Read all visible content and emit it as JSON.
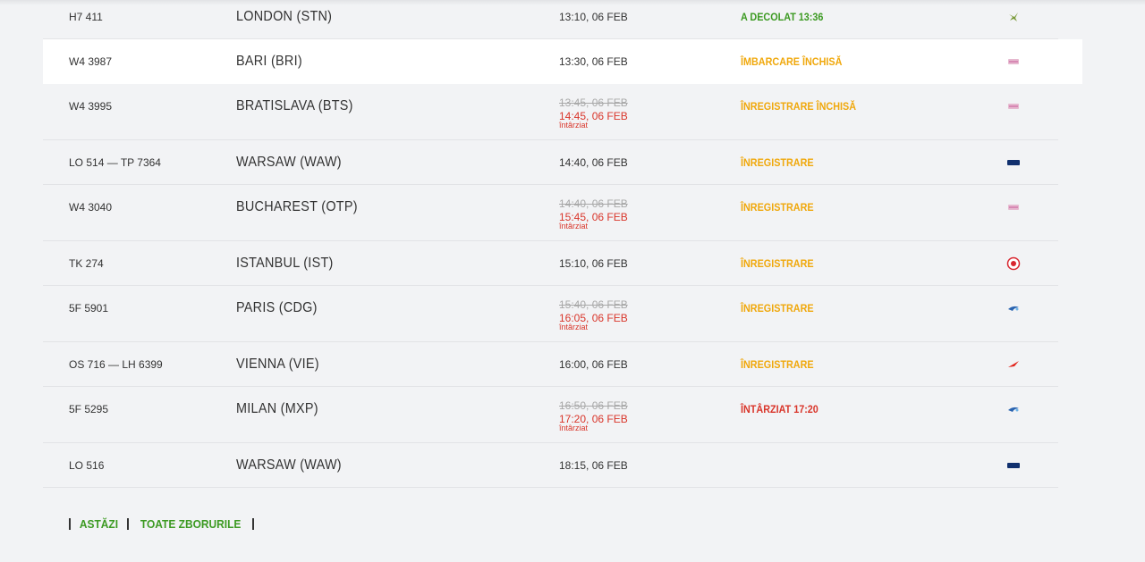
{
  "rows": [
    {
      "flight": "H7 411",
      "destination": "LONDON (STN)",
      "time": "13:10, 06 FEB",
      "status": "A DECOLAT 13:36",
      "status_color": "#3c9a22"
    },
    {
      "flight": "W4 3987",
      "destination": "BARI (BRI)",
      "time": "13:30, 06 FEB",
      "status": "ÎMBARCARE ÎNCHISĂ",
      "status_color": "#f0a80c",
      "highlighted": true
    },
    {
      "flight": "W4 3995",
      "destination": "BRATISLAVA (BTS)",
      "scheduled": "13:45, 06 FEB",
      "time": "14:45, 06 FEB",
      "delay_note": "întârziat",
      "status": "ÎNREGISTRARE ÎNCHISĂ",
      "status_color": "#f0a80c"
    },
    {
      "flight": "LO 514 — TP 7364",
      "destination": "WARSAW (WAW)",
      "time": "14:40, 06 FEB",
      "status": "ÎNREGISTRARE",
      "status_color": "#f0a80c"
    },
    {
      "flight": "W4 3040",
      "destination": "BUCHAREST (OTP)",
      "scheduled": "14:40, 06 FEB",
      "time": "15:45, 06 FEB",
      "delay_note": "întârziat",
      "status": "ÎNREGISTRARE",
      "status_color": "#f0a80c"
    },
    {
      "flight": "TK 274",
      "destination": "ISTANBUL (IST)",
      "time": "15:10, 06 FEB",
      "status": "ÎNREGISTRARE",
      "status_color": "#f0a80c"
    },
    {
      "flight": "5F 5901",
      "destination": "PARIS (CDG)",
      "scheduled": "15:40, 06 FEB",
      "time": "16:05, 06 FEB",
      "delay_note": "întârziat",
      "status": "ÎNREGISTRARE",
      "status_color": "#f0a80c"
    },
    {
      "flight": "OS 716 — LH 6399",
      "destination": "VIENNA (VIE)",
      "time": "16:00, 06 FEB",
      "status": "ÎNREGISTRARE",
      "status_color": "#f0a80c"
    },
    {
      "flight": "5F 5295",
      "destination": "MILAN (MXP)",
      "scheduled": "16:50, 06 FEB",
      "time": "17:20, 06 FEB",
      "delay_note": "întârziat",
      "status": "ÎNTÂRZIAT 17:20",
      "status_color": "#d9352a"
    },
    {
      "flight": "LO 516",
      "destination": "WARSAW (WAW)",
      "time": "18:15, 06 FEB"
    }
  ],
  "footer_links": [
    "ASTĂZI",
    "TOATE ZBORURILE"
  ]
}
